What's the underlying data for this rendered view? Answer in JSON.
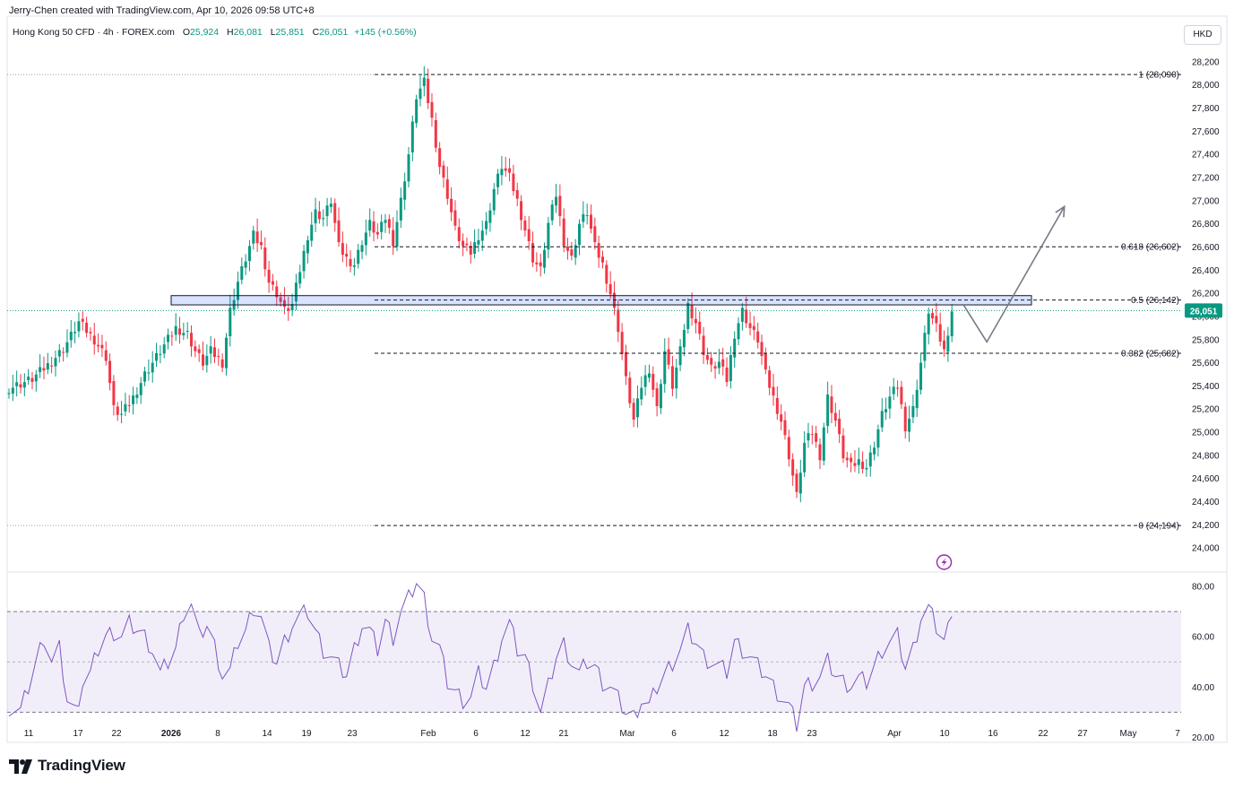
{
  "header": {
    "attribution": "Jerry-Chen created with TradingView.com, Apr 10, 2026 09:58 UTC+8",
    "symbol": "Hong Kong 50 CFD · 4h · FOREX.com",
    "open_label": "O",
    "open": "25,924",
    "high_label": "H",
    "high": "26,081",
    "low_label": "L",
    "low": "25,851",
    "close_label": "C",
    "close": "26,051",
    "change": "+145 (+0.56%)",
    "currency": "HKD"
  },
  "brand": {
    "name": "TradingView"
  },
  "chart_data": [
    {
      "type": "candlestick",
      "title": "Hong Kong 50 CFD",
      "ylim": [
        23800,
        28300
      ],
      "y_ticks": [
        24000,
        24200,
        24400,
        24600,
        24800,
        25000,
        25200,
        25400,
        25600,
        25800,
        26000,
        26200,
        26400,
        26600,
        26800,
        27000,
        27200,
        27400,
        27600,
        27800,
        28000,
        28200
      ],
      "y_tick_labels": [
        "24,000",
        "24,200",
        "24,400",
        "24,600",
        "24,800",
        "25,000",
        "25,200",
        "25,400",
        "25,600",
        "25,800",
        "26,000",
        "26,200",
        "26,400",
        "26,600",
        "26,800",
        "27,000",
        "27,200",
        "27,400",
        "27,600",
        "27,800",
        "28,000",
        "28,200"
      ],
      "x_tick_labels": [
        "11",
        "17",
        "22",
        "2026",
        "8",
        "14",
        "19",
        "23",
        "Feb",
        "6",
        "12",
        "21",
        "Mar",
        "6",
        "12",
        "18",
        "23",
        "Apr",
        "10",
        "16",
        "22",
        "27",
        "May",
        "7"
      ],
      "last_price": 26051,
      "last_price_label": "26,051",
      "up_color": "#089981",
      "down_color": "#f23645",
      "close_path": [
        [
          0,
          25380
        ],
        [
          6,
          25460
        ],
        [
          10,
          25580
        ],
        [
          14,
          25720
        ],
        [
          18,
          25950
        ],
        [
          22,
          25800
        ],
        [
          25,
          25650
        ],
        [
          27,
          25200
        ],
        [
          29,
          25150
        ],
        [
          32,
          25300
        ],
        [
          35,
          25500
        ],
        [
          38,
          25650
        ],
        [
          41,
          25800
        ],
        [
          43,
          25900
        ],
        [
          46,
          25850
        ],
        [
          48,
          25700
        ],
        [
          50,
          25600
        ],
        [
          52,
          25700
        ],
        [
          55,
          25600
        ],
        [
          57,
          26050
        ],
        [
          59,
          26300
        ],
        [
          61,
          26500
        ],
        [
          63,
          26700
        ],
        [
          65,
          26600
        ],
        [
          67,
          26300
        ],
        [
          69,
          26200
        ],
        [
          71,
          26050
        ],
        [
          73,
          26100
        ],
        [
          75,
          26400
        ],
        [
          77,
          26700
        ],
        [
          79,
          26900
        ],
        [
          81,
          26850
        ],
        [
          83,
          27000
        ],
        [
          85,
          26600
        ],
        [
          87,
          26500
        ],
        [
          89,
          26450
        ],
        [
          91,
          26650
        ],
        [
          93,
          26800
        ],
        [
          95,
          26700
        ],
        [
          97,
          26850
        ],
        [
          99,
          26650
        ],
        [
          101,
          27000
        ],
        [
          103,
          27400
        ],
        [
          105,
          27900
        ],
        [
          107,
          28020
        ],
        [
          109,
          27700
        ],
        [
          111,
          27300
        ],
        [
          113,
          27050
        ],
        [
          115,
          26750
        ],
        [
          117,
          26600
        ],
        [
          119,
          26550
        ],
        [
          121,
          26700
        ],
        [
          123,
          26800
        ],
        [
          125,
          27100
        ],
        [
          127,
          27300
        ],
        [
          129,
          27200
        ],
        [
          131,
          27000
        ],
        [
          133,
          26750
        ],
        [
          135,
          26500
        ],
        [
          137,
          26400
        ],
        [
          139,
          26800
        ],
        [
          141,
          27050
        ],
        [
          143,
          26650
        ],
        [
          145,
          26500
        ],
        [
          147,
          26800
        ],
        [
          149,
          26900
        ],
        [
          151,
          26600
        ],
        [
          153,
          26450
        ],
        [
          155,
          26200
        ],
        [
          157,
          25900
        ],
        [
          159,
          25450
        ],
        [
          161,
          25100
        ],
        [
          163,
          25400
        ],
        [
          165,
          25550
        ],
        [
          167,
          25200
        ],
        [
          169,
          25700
        ],
        [
          171,
          25400
        ],
        [
          173,
          25700
        ],
        [
          175,
          26100
        ],
        [
          177,
          25950
        ],
        [
          179,
          25700
        ],
        [
          181,
          25550
        ],
        [
          183,
          25600
        ],
        [
          185,
          25450
        ],
        [
          187,
          25850
        ],
        [
          189,
          26050
        ],
        [
          191,
          25900
        ],
        [
          193,
          25800
        ],
        [
          195,
          25500
        ],
        [
          197,
          25300
        ],
        [
          199,
          25100
        ],
        [
          201,
          24800
        ],
        [
          203,
          24450
        ],
        [
          205,
          24900
        ],
        [
          207,
          25000
        ],
        [
          209,
          24800
        ],
        [
          211,
          25300
        ],
        [
          213,
          25100
        ],
        [
          215,
          24800
        ],
        [
          217,
          24700
        ],
        [
          219,
          24750
        ],
        [
          221,
          24700
        ],
        [
          223,
          24900
        ],
        [
          225,
          25150
        ],
        [
          227,
          25300
        ],
        [
          229,
          25400
        ],
        [
          231,
          25050
        ],
        [
          233,
          25200
        ],
        [
          235,
          25600
        ],
        [
          237,
          26050
        ],
        [
          239,
          25900
        ],
        [
          241,
          25700
        ],
        [
          243,
          26051
        ]
      ],
      "annotations": {
        "fibonacci": [
          {
            "level": "1",
            "price": 28090,
            "label": "1 (28,090)"
          },
          {
            "level": "0.618",
            "price": 26602,
            "label": "0.618 (26,602)"
          },
          {
            "level": "0.5",
            "price": 26142,
            "label": "0.5 (26,142)"
          },
          {
            "level": "0.382",
            "price": 25682,
            "label": "0.382 (25,682)"
          },
          {
            "level": "0",
            "price": 24194,
            "label": "0 (24,194)"
          }
        ],
        "zone": {
          "top": 26180,
          "bottom": 26100,
          "color": "#2962ff"
        },
        "projection": [
          [
            246,
            26100
          ],
          [
            252,
            25780
          ],
          [
            272,
            26950
          ]
        ]
      }
    },
    {
      "type": "line",
      "title": "RSI",
      "ylim": [
        18,
        85
      ],
      "y_ticks": [
        20,
        40,
        60,
        80
      ],
      "y_tick_labels": [
        "20.00",
        "40.00",
        "60.00",
        "80.00"
      ],
      "band": [
        30,
        70
      ],
      "midline": 50,
      "line_color": "#7e57c2",
      "values": [
        [
          0,
          32
        ],
        [
          3,
          30
        ],
        [
          6,
          45
        ],
        [
          9,
          60
        ],
        [
          11,
          50
        ],
        [
          13,
          55
        ],
        [
          15,
          35
        ],
        [
          17,
          30
        ],
        [
          19,
          42
        ],
        [
          21,
          45
        ],
        [
          23,
          55
        ],
        [
          25,
          60
        ],
        [
          27,
          62
        ],
        [
          29,
          60
        ],
        [
          31,
          65
        ],
        [
          33,
          63
        ],
        [
          35,
          60
        ],
        [
          37,
          55
        ],
        [
          39,
          45
        ],
        [
          41,
          50
        ],
        [
          43,
          55
        ],
        [
          45,
          70
        ],
        [
          47,
          73
        ],
        [
          49,
          60
        ],
        [
          51,
          65
        ],
        [
          53,
          56
        ],
        [
          55,
          45
        ],
        [
          57,
          46
        ],
        [
          59,
          58
        ],
        [
          61,
          62
        ],
        [
          63,
          72
        ],
        [
          65,
          68
        ],
        [
          67,
          55
        ],
        [
          69,
          50
        ],
        [
          71,
          58
        ],
        [
          73,
          65
        ],
        [
          75,
          68
        ],
        [
          77,
          70
        ],
        [
          79,
          62
        ],
        [
          81,
          55
        ],
        [
          83,
          52
        ],
        [
          85,
          48
        ],
        [
          87,
          45
        ],
        [
          89,
          55
        ],
        [
          91,
          65
        ],
        [
          93,
          62
        ],
        [
          95,
          55
        ],
        [
          97,
          66
        ],
        [
          99,
          60
        ],
        [
          101,
          70
        ],
        [
          103,
          75
        ],
        [
          105,
          82
        ],
        [
          107,
          75
        ],
        [
          109,
          60
        ],
        [
          111,
          55
        ],
        [
          113,
          42
        ],
        [
          115,
          38
        ],
        [
          117,
          35
        ],
        [
          119,
          36
        ],
        [
          121,
          45
        ],
        [
          123,
          40
        ],
        [
          125,
          48
        ],
        [
          127,
          60
        ],
        [
          129,
          65
        ],
        [
          131,
          55
        ],
        [
          133,
          52
        ],
        [
          135,
          42
        ],
        [
          137,
          30
        ],
        [
          139,
          40
        ],
        [
          141,
          52
        ],
        [
          143,
          57
        ],
        [
          145,
          50
        ],
        [
          147,
          45
        ],
        [
          149,
          50
        ],
        [
          151,
          48
        ],
        [
          153,
          42
        ],
        [
          155,
          40
        ],
        [
          157,
          35
        ],
        [
          159,
          30
        ],
        [
          161,
          28
        ],
        [
          163,
          35
        ],
        [
          165,
          32
        ],
        [
          167,
          40
        ],
        [
          169,
          45
        ],
        [
          171,
          50
        ],
        [
          173,
          55
        ],
        [
          175,
          62
        ],
        [
          177,
          58
        ],
        [
          179,
          52
        ],
        [
          181,
          50
        ],
        [
          183,
          48
        ],
        [
          185,
          46
        ],
        [
          187,
          58
        ],
        [
          189,
          55
        ],
        [
          191,
          52
        ],
        [
          193,
          48
        ],
        [
          195,
          45
        ],
        [
          197,
          40
        ],
        [
          199,
          36
        ],
        [
          201,
          32
        ],
        [
          203,
          25
        ],
        [
          205,
          40
        ],
        [
          207,
          42
        ],
        [
          209,
          44
        ],
        [
          211,
          50
        ],
        [
          213,
          45
        ],
        [
          215,
          42
        ],
        [
          217,
          41
        ],
        [
          219,
          43
        ],
        [
          221,
          42
        ],
        [
          223,
          48
        ],
        [
          225,
          55
        ],
        [
          227,
          58
        ],
        [
          229,
          60
        ],
        [
          231,
          48
        ],
        [
          233,
          55
        ],
        [
          235,
          68
        ],
        [
          237,
          71
        ],
        [
          239,
          64
        ],
        [
          241,
          58
        ],
        [
          243,
          68
        ]
      ]
    }
  ]
}
